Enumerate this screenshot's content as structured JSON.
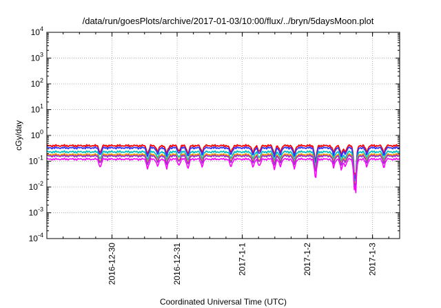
{
  "chart_data": {
    "type": "line",
    "title": "/data/run/goesPlots/archive/2017-01-03/10:00/flux/../bryn/5daysMoon.plot",
    "xlabel": "Coordinated Universal Time (UTC)",
    "ylabel": "cGy/day",
    "y_scale": "log",
    "ylim": [
      0.0001,
      10000
    ],
    "y_ticks": [
      {
        "base": "10",
        "exp": "4"
      },
      {
        "base": "10",
        "exp": "3"
      },
      {
        "base": "10",
        "exp": "2"
      },
      {
        "base": "10",
        "exp": "1"
      },
      {
        "base": "10",
        "exp": "0"
      },
      {
        "base": "10",
        "exp": "-1"
      },
      {
        "base": "10",
        "exp": "-2"
      },
      {
        "base": "10",
        "exp": "-3"
      },
      {
        "base": "10",
        "exp": "-4"
      }
    ],
    "x_tick_labels": [
      "2016-12-30",
      "2016-12-31",
      "2017-1-1",
      "2017-1-2",
      "2017-1-3"
    ],
    "xlim": [
      "2016-12-29 00:00",
      "2017-01-03 10:00"
    ],
    "grid": true,
    "series": [
      {
        "color": "#ff0000",
        "level": 0.4
      },
      {
        "color": "#3333ff",
        "level": 0.33
      },
      {
        "color": "#00c0c0",
        "level": 0.23
      },
      {
        "color": "#ff9900",
        "level": 0.18
      },
      {
        "color": "#9933cc",
        "level": 0.16
      },
      {
        "color": "#ff00ff",
        "level": 0.12
      }
    ],
    "dips": [
      {
        "t": "2016-12-29 19:40",
        "depth": 0.5
      },
      {
        "t": "2016-12-30 13:10",
        "depth": 0.55
      },
      {
        "t": "2016-12-30 16:50",
        "depth": 0.45
      },
      {
        "t": "2016-12-30 20:10",
        "depth": 0.55
      },
      {
        "t": "2016-12-31 00:40",
        "depth": 0.4
      },
      {
        "t": "2016-12-31 04:00",
        "depth": 0.55
      },
      {
        "t": "2016-12-31 09:10",
        "depth": 0.45
      },
      {
        "t": "2016-12-31 19:50",
        "depth": 0.5
      },
      {
        "t": "2017-01-01 04:00",
        "depth": 0.5
      },
      {
        "t": "2017-01-01 06:20",
        "depth": 0.45
      },
      {
        "t": "2017-01-01 11:50",
        "depth": 0.55
      },
      {
        "t": "2017-01-01 14:00",
        "depth": 0.45
      },
      {
        "t": "2017-01-01 19:10",
        "depth": 0.55
      },
      {
        "t": "2017-01-02 03:00",
        "depth": 0.85
      },
      {
        "t": "2017-01-02 09:40",
        "depth": 0.5
      },
      {
        "t": "2017-01-02 12:30",
        "depth": 0.6
      },
      {
        "t": "2017-01-02 14:00",
        "depth": 0.45
      },
      {
        "t": "2017-01-02 17:20",
        "depth": 0.95
      },
      {
        "t": "2017-01-02 17:50",
        "depth": 0.95
      },
      {
        "t": "2017-01-02 21:50",
        "depth": 0.45
      },
      {
        "t": "2017-01-03 04:10",
        "depth": 0.5
      }
    ]
  }
}
